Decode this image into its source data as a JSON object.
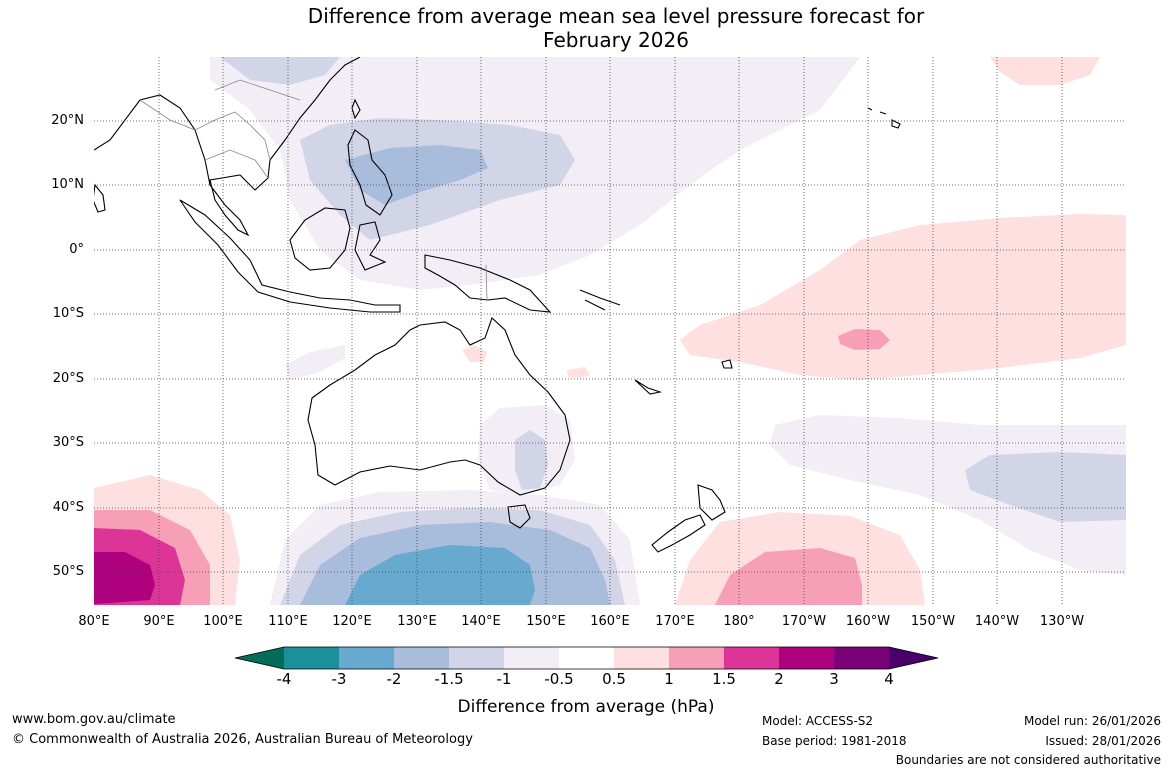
{
  "title": "Difference from average mean sea level pressure forecast for\nFebruary 2026",
  "map": {
    "lat_labels": [
      "20°N",
      "10°N",
      "0°",
      "10°S",
      "20°S",
      "30°S",
      "40°S",
      "50°S"
    ],
    "lon_labels": [
      "80°E",
      "90°E",
      "100°E",
      "110°E",
      "120°E",
      "130°E",
      "140°E",
      "150°E",
      "160°E",
      "170°E",
      "180°",
      "170°W",
      "160°W",
      "150°W",
      "140°W",
      "130°W"
    ],
    "fill_colors": {
      "neg_0_5": "#f3eef6",
      "neg_1": "#d2d4e7",
      "neg_1_5": "#a8bcdc",
      "neg_2": "#67a9cf",
      "pos_0_5": "#fde0df",
      "pos_1": "#f79fb7",
      "pos_1_5": "#dd3497",
      "pos_2": "#ae017e"
    }
  },
  "colorbar": {
    "ticks": [
      "-4",
      "-3",
      "-2",
      "-1.5",
      "-1",
      "-0.5",
      "0.5",
      "1",
      "1.5",
      "2",
      "3",
      "4"
    ],
    "colors": [
      "#016c59",
      "#1c9099",
      "#67a9cf",
      "#a8bcdc",
      "#d2d4e7",
      "#f3eef6",
      "#ffffff",
      "#fde0df",
      "#f79fb7",
      "#dd3497",
      "#ae017e",
      "#7a0177",
      "#49006a"
    ],
    "label": "Difference from average (hPa)"
  },
  "footer": {
    "website": "www.bom.gov.au/climate",
    "copyright": "© Commonwealth of Australia 2026, Australian Bureau of Meteorology",
    "model": "Model: ACCESS-S2",
    "base_period": "Base period: 1981-2018",
    "model_run": "Model run: 26/01/2026",
    "issued": "Issued: 28/01/2026",
    "disclaimer": "Boundaries are not considered authoritative"
  }
}
